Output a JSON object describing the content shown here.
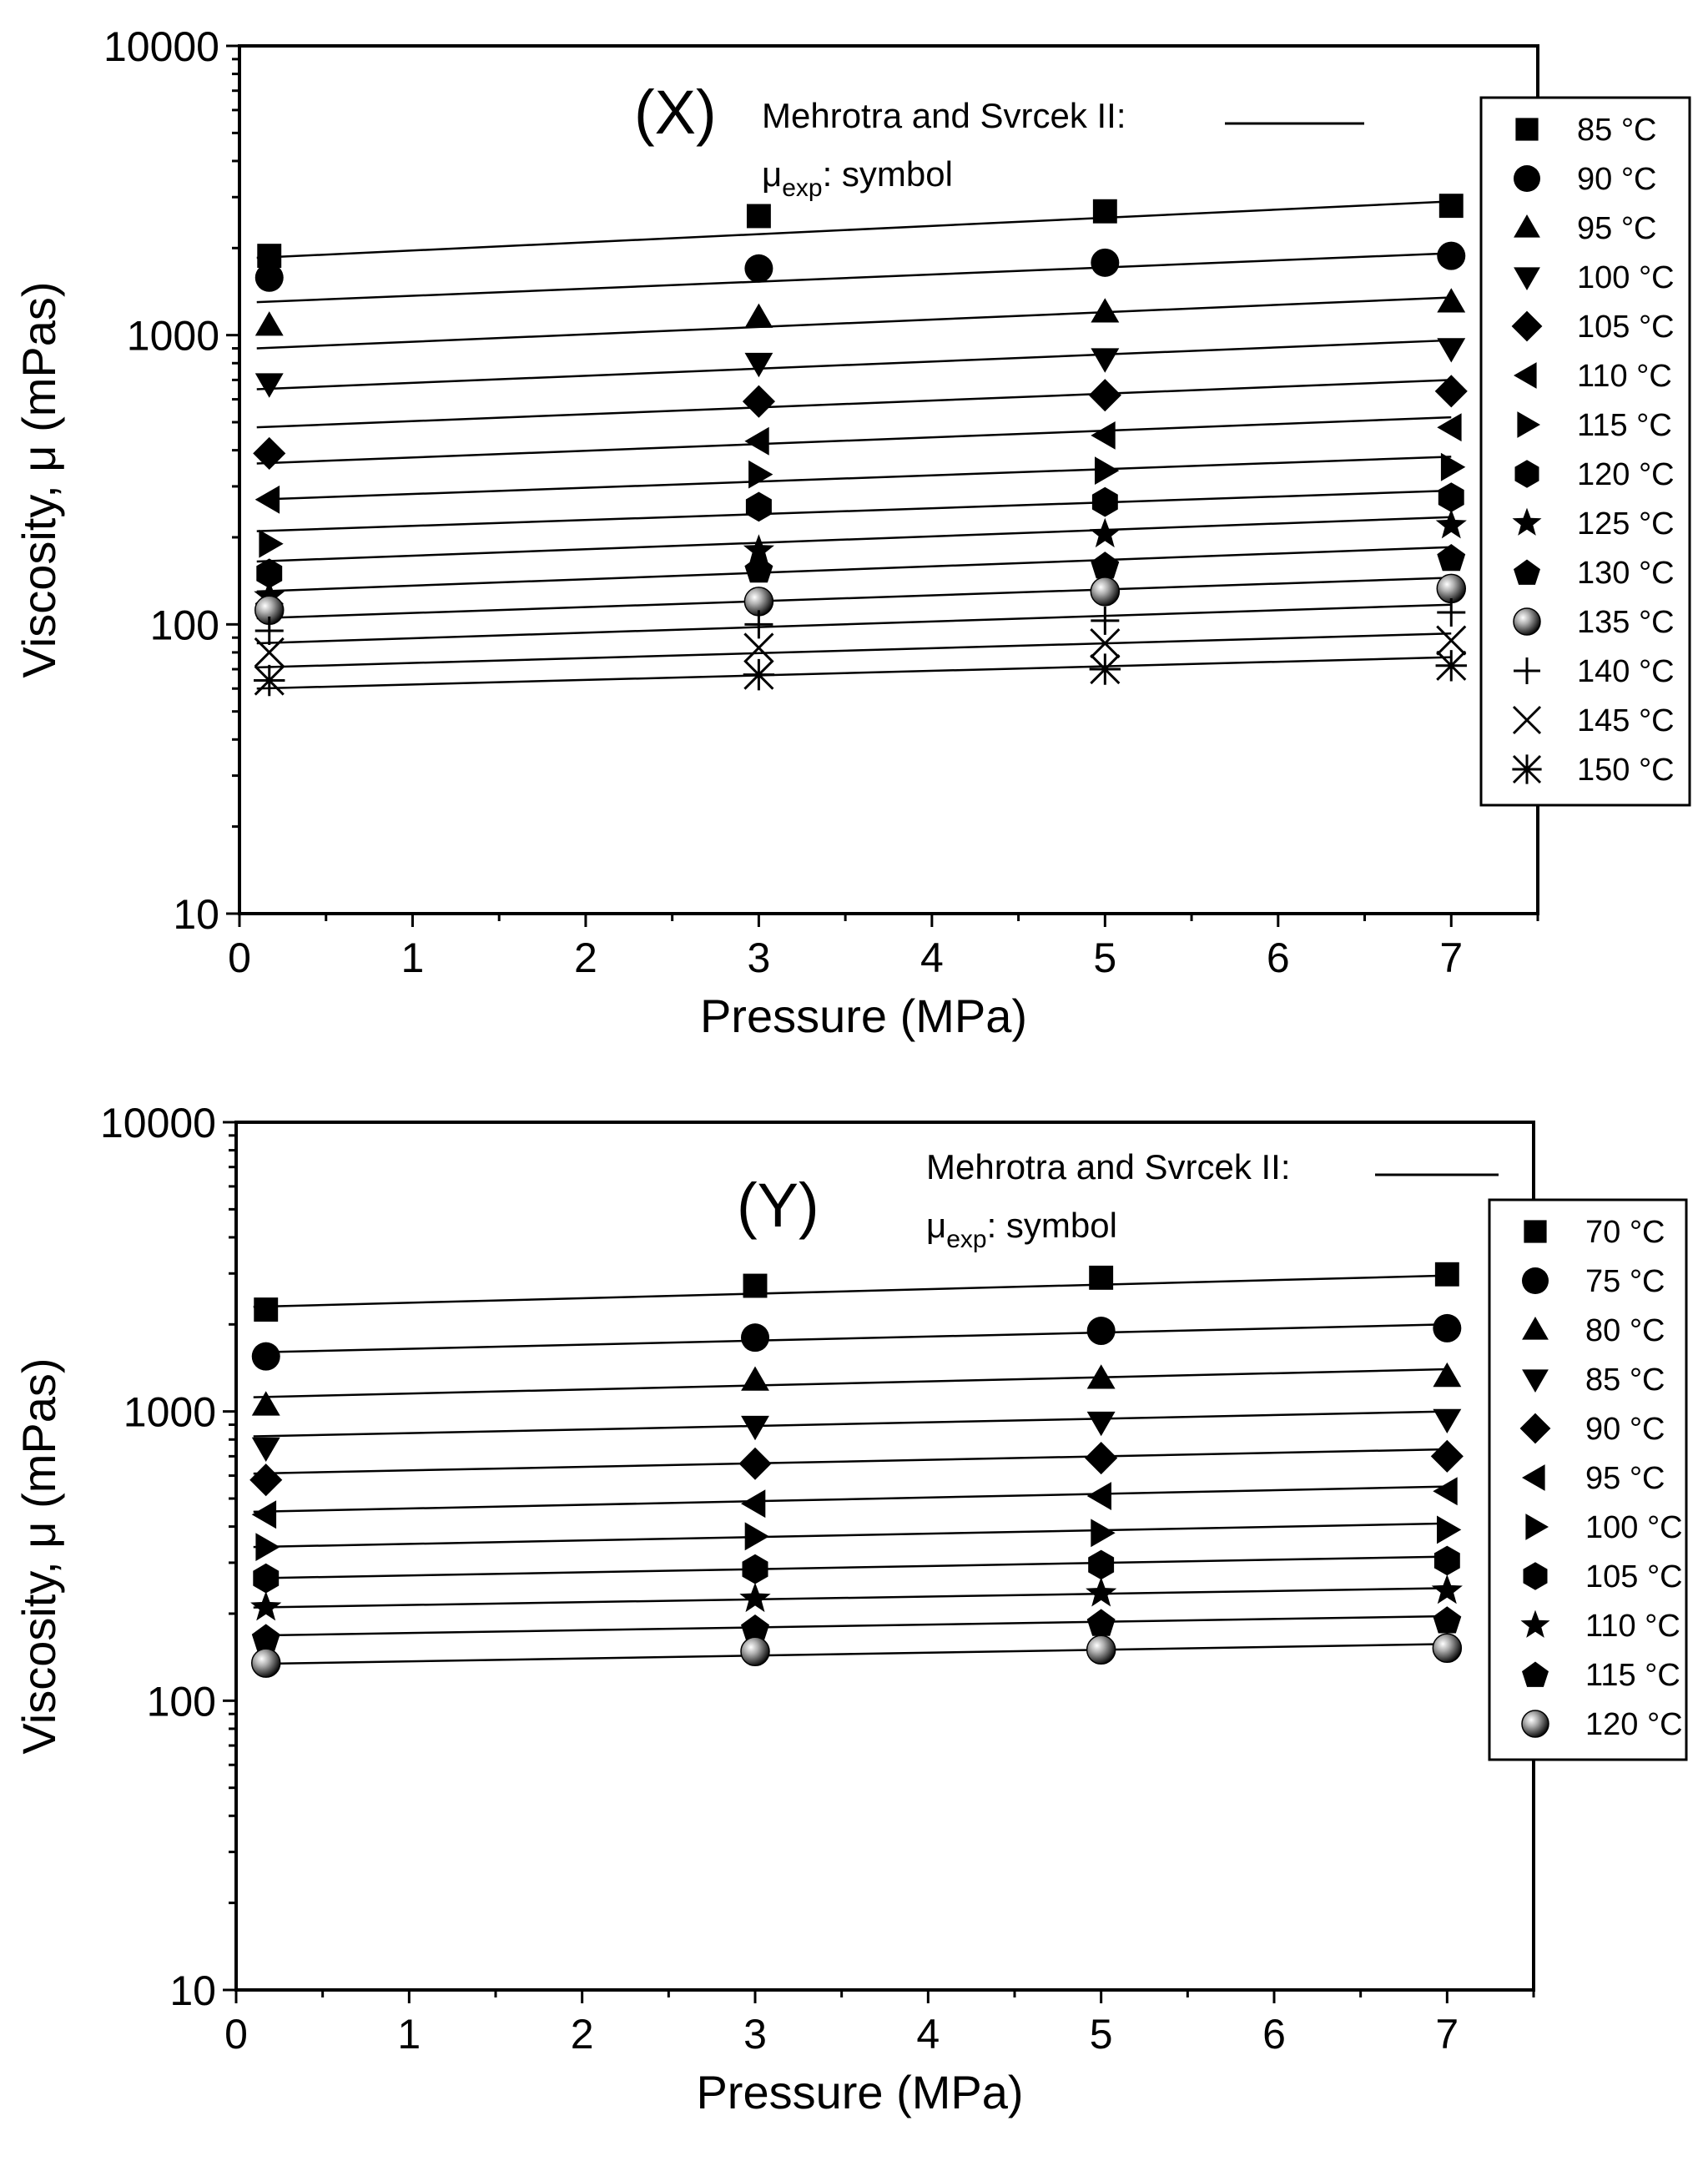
{
  "chart_data": [
    {
      "type": "scatter",
      "panel_label": "(X)",
      "xlabel": "Pressure (MPa)",
      "ylabel": "Viscosity, μ (mPas)",
      "xlim": [
        0,
        7.5
      ],
      "ylim": [
        10,
        10000
      ],
      "yscale": "log",
      "x_ticks": [
        "0",
        "1",
        "2",
        "3",
        "4",
        "5",
        "6",
        "7"
      ],
      "y_ticks": [
        "10",
        "100",
        "1000",
        "10000"
      ],
      "model_label": "Mehrotra and Svrcek II:",
      "exp_label_main": "μ",
      "exp_label_sub": "exp",
      "exp_label_tail": ": symbol",
      "legend_position": "upper right",
      "x": [
        0.1,
        3,
        5,
        7
      ],
      "series": [
        {
          "name": "85 °C",
          "temp": "85",
          "marker": "square",
          "values": [
            1880,
            2580,
            2680,
            2800
          ],
          "fit": [
            1850,
            2900
          ]
        },
        {
          "name": "90 °C",
          "temp": "90",
          "marker": "circle",
          "values": [
            1580,
            1700,
            1780,
            1880
          ],
          "fit": [
            1300,
            1920
          ]
        },
        {
          "name": "95 °C",
          "temp": "95",
          "marker": "triangle-up",
          "values": [
            1080,
            1150,
            1200,
            1300
          ],
          "fit": [
            900,
            1350
          ]
        },
        {
          "name": "100 °C",
          "temp": "100",
          "marker": "triangle-down",
          "values": [
            680,
            800,
            830,
            900
          ],
          "fit": [
            650,
            960
          ]
        },
        {
          "name": "105 °C",
          "temp": "105",
          "marker": "diamond",
          "values": [
            390,
            590,
            620,
            640
          ],
          "fit": [
            480,
            700
          ]
        },
        {
          "name": "110 °C",
          "temp": "110",
          "marker": "triangle-left",
          "values": [
            270,
            430,
            450,
            480
          ],
          "fit": [
            360,
            520
          ]
        },
        {
          "name": "115 °C",
          "temp": "115",
          "marker": "triangle-right",
          "values": [
            190,
            330,
            340,
            350
          ],
          "fit": [
            270,
            380
          ]
        },
        {
          "name": "120 °C",
          "temp": "120",
          "marker": "hexagon",
          "values": [
            150,
            255,
            265,
            275
          ],
          "fit": [
            210,
            290
          ]
        },
        {
          "name": "125 °C",
          "temp": "125",
          "marker": "star",
          "values": [
            125,
            180,
            205,
            220
          ],
          "fit": [
            165,
            235
          ]
        },
        {
          "name": "130 °C",
          "temp": "130",
          "marker": "pentagon",
          "values": [
            115,
            155,
            160,
            170
          ],
          "fit": [
            130,
            185
          ]
        },
        {
          "name": "135 °C",
          "temp": "135",
          "marker": "sphere",
          "values": [
            112,
            120,
            130,
            133
          ],
          "fit": [
            105,
            145
          ]
        },
        {
          "name": "140 °C",
          "temp": "140",
          "marker": "plus",
          "values": [
            95,
            100,
            103,
            110
          ],
          "fit": [
            86,
            117
          ]
        },
        {
          "name": "145 °C",
          "temp": "145",
          "marker": "x",
          "values": [
            80,
            83,
            86,
            88
          ],
          "fit": [
            71,
            93
          ]
        },
        {
          "name": "150 °C",
          "temp": "150",
          "marker": "asterisk",
          "values": [
            64,
            67,
            70,
            72
          ],
          "fit": [
            60,
            77
          ]
        }
      ]
    },
    {
      "type": "scatter",
      "panel_label": "(Y)",
      "xlabel": "Pressure (MPa)",
      "ylabel": "Viscosity, μ (mPas)",
      "xlim": [
        0,
        7.5
      ],
      "ylim": [
        10,
        10000
      ],
      "yscale": "log",
      "x_ticks": [
        "0",
        "1",
        "2",
        "3",
        "4",
        "5",
        "6",
        "7"
      ],
      "y_ticks": [
        "10",
        "100",
        "1000",
        "10000"
      ],
      "model_label": "Mehrotra and Svrcek II:",
      "exp_label_main": "μ",
      "exp_label_sub": "exp",
      "exp_label_tail": ": symbol",
      "legend_position": "upper right",
      "x": [
        0.1,
        3,
        5,
        7
      ],
      "series": [
        {
          "name": "70 °C",
          "temp": "70",
          "marker": "square",
          "values": [
            2250,
            2720,
            2900,
            2980
          ],
          "fit": [
            2300,
            2950
          ]
        },
        {
          "name": "75 °C",
          "temp": "75",
          "marker": "circle",
          "values": [
            1550,
            1800,
            1900,
            1940
          ],
          "fit": [
            1600,
            2000
          ]
        },
        {
          "name": "80 °C",
          "temp": "80",
          "marker": "triangle-up",
          "values": [
            1050,
            1280,
            1300,
            1320
          ],
          "fit": [
            1120,
            1400
          ]
        },
        {
          "name": "85 °C",
          "temp": "85",
          "marker": "triangle-down",
          "values": [
            750,
            890,
            920,
            940
          ],
          "fit": [
            820,
            1000
          ]
        },
        {
          "name": "90 °C",
          "temp": "90",
          "marker": "diamond",
          "values": [
            580,
            660,
            690,
            700
          ],
          "fit": [
            610,
            740
          ]
        },
        {
          "name": "95 °C",
          "temp": "95",
          "marker": "triangle-left",
          "values": [
            440,
            480,
            510,
            530
          ],
          "fit": [
            450,
            550
          ]
        },
        {
          "name": "100 °C",
          "temp": "100",
          "marker": "triangle-right",
          "values": [
            340,
            370,
            380,
            390
          ],
          "fit": [
            340,
            410
          ]
        },
        {
          "name": "105 °C",
          "temp": "105",
          "marker": "hexagon",
          "values": [
            265,
            285,
            295,
            305
          ],
          "fit": [
            265,
            315
          ]
        },
        {
          "name": "110 °C",
          "temp": "110",
          "marker": "star",
          "values": [
            210,
            225,
            235,
            240
          ],
          "fit": [
            210,
            245
          ]
        },
        {
          "name": "115 °C",
          "temp": "115",
          "marker": "pentagon",
          "values": [
            165,
            178,
            186,
            190
          ],
          "fit": [
            168,
            196
          ]
        },
        {
          "name": "120 °C",
          "temp": "120",
          "marker": "sphere",
          "values": [
            135,
            148,
            150,
            152
          ],
          "fit": [
            134,
            157
          ]
        }
      ]
    }
  ]
}
